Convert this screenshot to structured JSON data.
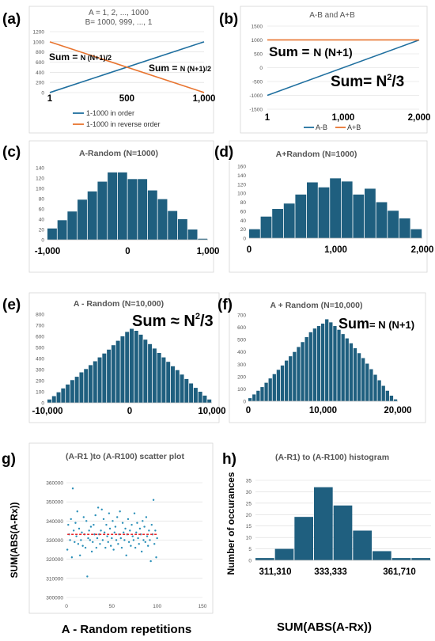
{
  "panel_labels": [
    "(a)",
    "(b)",
    "(c)",
    "(d)",
    "(e)",
    "(f)",
    "g)",
    "h)"
  ],
  "colors": {
    "bar": "#1f5f7f",
    "blue_line": "#1f6f9f",
    "orange_line": "#e8742f",
    "mean_line": "#e8262a",
    "dot": "#2a8fb8"
  },
  "annotations": {
    "a_left": {
      "pre": "Sum = ",
      "post": "N (N+1)/2"
    },
    "a_right": {
      "pre": "Sum = ",
      "post": "N (N+1)/2"
    },
    "b_sum1": {
      "pre": "Sum = ",
      "post": "N (N+1)"
    },
    "b_sum2": {
      "pre": "Sum= N",
      "sup": "2",
      "post": "/3"
    },
    "e_sum": {
      "pre": "Sum ≈ N",
      "sup": "2",
      "post": "/3"
    },
    "f_sum": {
      "pre": "Sum",
      "post": "= N (N+1)"
    }
  },
  "bottom_labels": {
    "g_xlabel": "A - Random repetitions",
    "h_xlabel": "SUM(ABS(A-Rx))"
  },
  "chart_data": [
    {
      "id": "a",
      "type": "line",
      "title": "A = 1, 2, ..., 1000",
      "subtitle": "B= 1000, 999, ..., 1",
      "xlim": [
        1,
        1000
      ],
      "ylim": [
        0,
        1200
      ],
      "y_ticks": [
        "0",
        "200",
        "400",
        "600",
        "800",
        "1000",
        "1200"
      ],
      "x_ticks": [
        {
          "v": 1,
          "l": "1"
        },
        {
          "v": 500,
          "l": "500"
        },
        {
          "v": 1000,
          "l": "1,000"
        }
      ],
      "series": [
        {
          "name": "1-1000 in order",
          "color": "#1f6f9f",
          "x": [
            1,
            1000
          ],
          "y": [
            1,
            1000
          ]
        },
        {
          "name": "1-1000 in reverse order",
          "color": "#e8742f",
          "x": [
            1,
            1000
          ],
          "y": [
            1000,
            1
          ]
        }
      ],
      "legend": "bottom"
    },
    {
      "id": "b",
      "type": "line",
      "title": "A-B and A+B",
      "xlim": [
        1,
        2000
      ],
      "ylim": [
        -1500,
        1500
      ],
      "y_ticks": [
        "-1500",
        "-1000",
        "-500",
        "0",
        "500",
        "1000",
        "1500"
      ],
      "x_ticks": [
        {
          "v": 1,
          "l": "1"
        },
        {
          "v": 1000,
          "l": "1,000"
        },
        {
          "v": 2000,
          "l": "2,000"
        }
      ],
      "series": [
        {
          "name": "A-B",
          "color": "#1f6f9f",
          "x": [
            1,
            2000
          ],
          "y": [
            -999,
            999
          ]
        },
        {
          "name": "A+B",
          "color": "#e8742f",
          "x": [
            1,
            2000
          ],
          "y": [
            1001,
            1001
          ]
        }
      ],
      "legend": "bottom"
    },
    {
      "id": "c",
      "type": "bar",
      "title": "A-Random (N=1000)",
      "xlim": [
        -1000,
        1000
      ],
      "ylim": [
        0,
        140
      ],
      "y_ticks": [
        "0",
        "20",
        "40",
        "60",
        "80",
        "100",
        "120",
        "140"
      ],
      "x_ticks": [
        {
          "v": -1000,
          "l": "-1,000"
        },
        {
          "v": 0,
          "l": "0"
        },
        {
          "v": 1000,
          "l": "1,000"
        }
      ],
      "values": [
        22,
        38,
        55,
        78,
        94,
        113,
        131,
        131,
        118,
        118,
        96,
        79,
        56,
        40,
        20,
        2
      ]
    },
    {
      "id": "d",
      "type": "bar",
      "title": "A+Random (N=1000)",
      "xlim": [
        0,
        2000
      ],
      "ylim": [
        0,
        160
      ],
      "y_ticks": [
        "0",
        "20",
        "40",
        "60",
        "80",
        "100",
        "120",
        "140",
        "160"
      ],
      "x_ticks": [
        {
          "v": 0,
          "l": "0"
        },
        {
          "v": 1000,
          "l": "1,000"
        },
        {
          "v": 2000,
          "l": "2,000"
        }
      ],
      "values": [
        20,
        48,
        65,
        77,
        97,
        124,
        113,
        133,
        126,
        97,
        110,
        80,
        61,
        44,
        20
      ]
    },
    {
      "id": "e",
      "type": "bar",
      "title": "A - Random (N=10,000)",
      "xlim": [
        -10000,
        10000
      ],
      "ylim": [
        0,
        800
      ],
      "y_ticks": [
        "0",
        "100",
        "200",
        "300",
        "400",
        "500",
        "600",
        "700",
        "800"
      ],
      "x_ticks": [
        {
          "v": -10000,
          "l": "-10,000"
        },
        {
          "v": 0,
          "l": "0"
        },
        {
          "v": 10000,
          "l": "10,000"
        }
      ],
      "values": [
        30,
        60,
        95,
        130,
        165,
        205,
        235,
        275,
        305,
        340,
        375,
        410,
        445,
        480,
        520,
        560,
        600,
        640,
        668,
        650,
        615,
        570,
        530,
        490,
        450,
        410,
        370,
        330,
        295,
        255,
        215,
        175,
        135,
        100,
        65,
        30
      ]
    },
    {
      "id": "f",
      "type": "bar",
      "title": "A + Random (N=10,000)",
      "xlim": [
        0,
        20000
      ],
      "ylim": [
        0,
        700
      ],
      "y_ticks": [
        "0",
        "100",
        "200",
        "300",
        "400",
        "500",
        "600",
        "700"
      ],
      "x_ticks": [
        {
          "v": 0,
          "l": "0"
        },
        {
          "v": 10000,
          "l": "10,000"
        },
        {
          "v": 20000,
          "l": "20,000"
        }
      ],
      "values": [
        25,
        55,
        85,
        115,
        150,
        185,
        220,
        255,
        290,
        330,
        365,
        400,
        440,
        480,
        520,
        560,
        590,
        610,
        630,
        665,
        640,
        610,
        580,
        545,
        510,
        470,
        430,
        390,
        350,
        305,
        260,
        215,
        170,
        125,
        85,
        45,
        15
      ]
    },
    {
      "id": "g",
      "type": "scatter",
      "title": "(A-R1 )to (A-R100) scatter plot",
      "ylabel": "SUM(ABS(A-Rx))",
      "xlim": [
        0,
        150
      ],
      "ylim": [
        300000,
        360000
      ],
      "y_ticks": [
        "300000",
        "310000",
        "320000",
        "330000",
        "340000",
        "350000",
        "360000"
      ],
      "x_ticks": [
        {
          "v": 0,
          "l": "0"
        },
        {
          "v": 50,
          "l": "50"
        },
        {
          "v": 100,
          "l": "100"
        },
        {
          "v": 150,
          "l": "150"
        }
      ],
      "mean": 333000,
      "x": [
        1,
        2,
        3,
        4,
        5,
        6,
        7,
        8,
        9,
        10,
        11,
        12,
        13,
        14,
        15,
        16,
        17,
        18,
        19,
        20,
        21,
        22,
        23,
        24,
        25,
        26,
        27,
        28,
        29,
        30,
        31,
        32,
        33,
        34,
        35,
        36,
        37,
        38,
        39,
        40,
        41,
        42,
        43,
        44,
        45,
        46,
        47,
        48,
        49,
        50,
        51,
        52,
        53,
        54,
        55,
        56,
        57,
        58,
        59,
        60,
        61,
        62,
        63,
        64,
        65,
        66,
        67,
        68,
        69,
        70,
        71,
        72,
        73,
        74,
        75,
        76,
        77,
        78,
        79,
        80,
        81,
        82,
        83,
        84,
        85,
        86,
        87,
        88,
        89,
        90,
        91,
        92,
        93,
        94,
        95,
        96,
        97,
        98,
        99,
        100
      ],
      "y": [
        325000,
        338000,
        333000,
        330000,
        341000,
        321000,
        357000,
        335000,
        329000,
        339000,
        332000,
        345000,
        328000,
        336000,
        322000,
        330000,
        334000,
        327000,
        342000,
        333000,
        326000,
        340000,
        311000,
        331000,
        335000,
        330000,
        337000,
        324000,
        329000,
        338000,
        333000,
        343000,
        326000,
        331000,
        347000,
        333000,
        328000,
        335000,
        346000,
        330000,
        341000,
        334000,
        326000,
        338000,
        332000,
        329000,
        344000,
        336000,
        327000,
        331000,
        340000,
        325000,
        334000,
        337000,
        330000,
        342000,
        328000,
        333000,
        345000,
        331000,
        326000,
        339000,
        334000,
        330000,
        336000,
        322000,
        333000,
        341000,
        329000,
        335000,
        327000,
        338000,
        332000,
        330000,
        344000,
        326000,
        334000,
        339000,
        331000,
        328000,
        336000,
        333000,
        324000,
        340000,
        330000,
        337000,
        329000,
        342000,
        332000,
        327000,
        335000,
        330000,
        319000,
        338000,
        333000,
        351000,
        328000,
        335000,
        321000,
        331000
      ]
    },
    {
      "id": "h",
      "type": "bar",
      "title": "(A-R1) to (A-R100) histogram",
      "ylabel": "Number of occurances",
      "ylim": [
        0,
        35
      ],
      "y_ticks": [
        "0",
        "5",
        "10",
        "15",
        "20",
        "25",
        "30",
        "35"
      ],
      "x_tick_labels": [
        "311,310",
        "333,333",
        "361,710"
      ],
      "values": [
        1,
        5,
        19,
        32,
        24,
        13,
        4,
        1,
        1
      ]
    }
  ]
}
